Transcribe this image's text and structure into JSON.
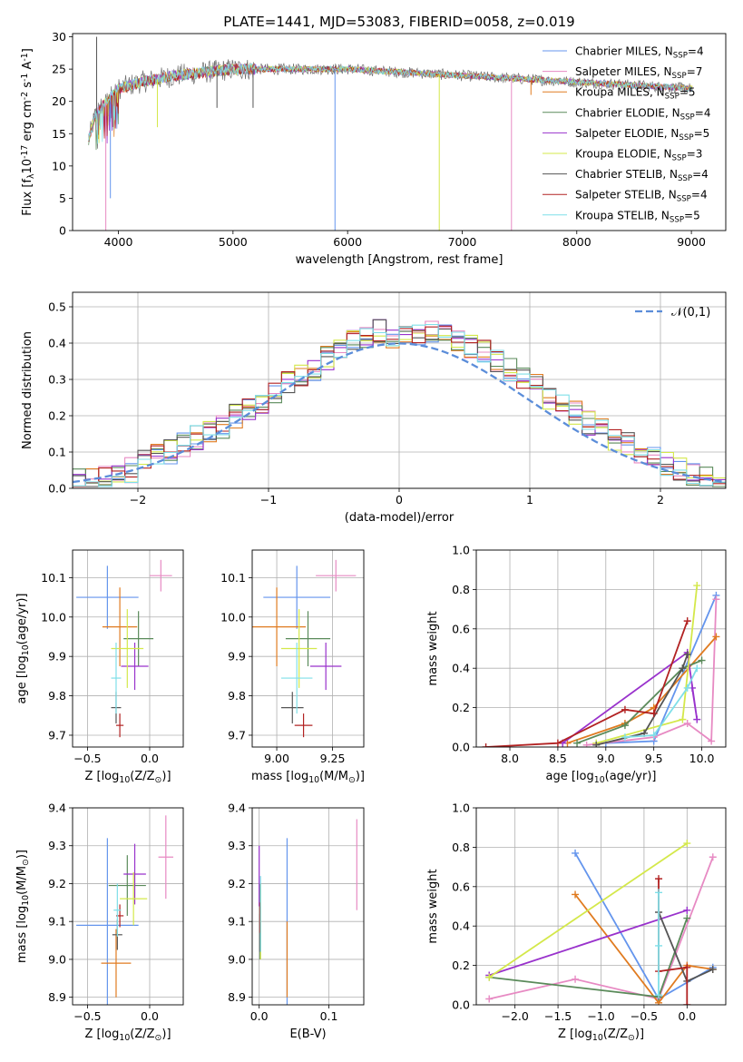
{
  "title": "PLATE=1441, MJD=53083, FIBERID=0058, z=0.019",
  "colors": [
    "#6495ED",
    "#E78AC3",
    "#E07B20",
    "#5A8A5A",
    "#9932CC",
    "#D4E84A",
    "#555555",
    "#B22222",
    "#7FDFE8"
  ],
  "legend_labels": [
    "Chabrier MILES, N$_{SSP}$=4",
    "Salpeter MILES, N$_{SSP}$=7",
    "Kroupa MILES, N$_{SSP}$=5",
    "Chabrier ELODIE, N$_{SSP}$=4",
    "Salpeter ELODIE, N$_{SSP}$=5",
    "Kroupa ELODIE, N$_{SSP}$=3",
    "Chabrier STELIB, N$_{SSP}$=4",
    "Salpeter STELIB, N$_{SSP}$=4",
    "Kroupa STELIB, N$_{SSP}$=5"
  ],
  "chart_data": [
    {
      "id": "spectrum",
      "type": "line",
      "xlabel": "wavelength [Angstrom, rest frame]",
      "ylabel": "Flux [f$_\\lambda$10$^{-17}$ erg cm$^{-2}$ s$^{-1}$ A$^{-1}$]",
      "xlim": [
        3600,
        9300
      ],
      "ylim": [
        0,
        30.5
      ],
      "xticks": [
        "4000",
        "5000",
        "6000",
        "7000",
        "8000",
        "9000"
      ],
      "yticks": [
        "0",
        "5",
        "10",
        "15",
        "20",
        "25",
        "30"
      ],
      "series_ref": "legend_labels",
      "approx_profile": [
        [
          3740,
          14
        ],
        [
          3800,
          18
        ],
        [
          3900,
          20
        ],
        [
          4000,
          22
        ],
        [
          4200,
          23
        ],
        [
          4500,
          24
        ],
        [
          5000,
          25
        ],
        [
          5500,
          25
        ],
        [
          6000,
          25
        ],
        [
          6500,
          24.5
        ],
        [
          7000,
          24
        ],
        [
          7500,
          23.5
        ],
        [
          8000,
          23
        ],
        [
          8500,
          22.5
        ],
        [
          9000,
          22
        ]
      ],
      "features": [
        {
          "x": 3810,
          "y": 30
        },
        {
          "x": 3890,
          "y": 0
        },
        {
          "x": 3930,
          "y": 5
        },
        {
          "x": 4340,
          "y": 16
        },
        {
          "x": 4860,
          "y": 19
        },
        {
          "x": 5175,
          "y": 19
        },
        {
          "x": 5890,
          "y": 0
        },
        {
          "x": 6800,
          "y": 0
        },
        {
          "x": 7430,
          "y": 0
        },
        {
          "x": 7600,
          "y": 21
        }
      ]
    },
    {
      "id": "residuals",
      "type": "line",
      "xlabel": "(data-model)/error",
      "ylabel": "Normed distribution",
      "xlim": [
        -2.5,
        2.5
      ],
      "ylim": [
        0,
        0.54
      ],
      "xticks": [
        "−2",
        "−1",
        "0",
        "1",
        "2"
      ],
      "yticks": [
        "0.0",
        "0.1",
        "0.2",
        "0.3",
        "0.4",
        "0.5"
      ],
      "legend": "$\\mathcal{N}(0,1)$",
      "bin_centers": [
        -2.45,
        -2.35,
        -2.25,
        -2.15,
        -2.05,
        -1.95,
        -1.85,
        -1.75,
        -1.65,
        -1.55,
        -1.45,
        -1.35,
        -1.25,
        -1.15,
        -1.05,
        -0.95,
        -0.85,
        -0.75,
        -0.65,
        -0.55,
        -0.45,
        -0.35,
        -0.25,
        -0.15,
        -0.05,
        0.05,
        0.15,
        0.25,
        0.35,
        0.45,
        0.55,
        0.65,
        0.75,
        0.85,
        0.95,
        1.05,
        1.15,
        1.25,
        1.35,
        1.45,
        1.55,
        1.65,
        1.75,
        1.85,
        1.95,
        2.05,
        2.15,
        2.25,
        2.35,
        2.45
      ],
      "histogram": [
        0.02,
        0.02,
        0.03,
        0.04,
        0.05,
        0.07,
        0.09,
        0.1,
        0.12,
        0.14,
        0.15,
        0.17,
        0.2,
        0.22,
        0.24,
        0.26,
        0.29,
        0.31,
        0.33,
        0.36,
        0.38,
        0.4,
        0.42,
        0.43,
        0.42,
        0.43,
        0.42,
        0.43,
        0.42,
        0.4,
        0.39,
        0.38,
        0.35,
        0.33,
        0.31,
        0.28,
        0.25,
        0.24,
        0.21,
        0.18,
        0.16,
        0.14,
        0.12,
        0.1,
        0.09,
        0.07,
        0.05,
        0.04,
        0.03,
        0.02
      ],
      "gaussian": {
        "mean": 0,
        "sigma": 1
      }
    },
    {
      "id": "age_vs_Z",
      "type": "scatter",
      "xlabel": "Z [log$_{10}$($Z/Z_\\odot$)]",
      "ylabel": "age  [log$_{10}$($age/yr$)]",
      "xlim": [
        -0.62,
        0.27
      ],
      "ylim": [
        9.67,
        10.17
      ],
      "xticks": [
        "−0.5",
        "0.0"
      ],
      "yticks": [
        "9.7",
        "9.8",
        "9.9",
        "10.0",
        "10.1"
      ],
      "points": [
        {
          "x": -0.34,
          "y": 10.05,
          "xerr": 0.25,
          "yerr": 0.08
        },
        {
          "x": 0.09,
          "y": 10.105,
          "xerr": 0.09,
          "yerr": 0.04
        },
        {
          "x": -0.24,
          "y": 9.975,
          "xerr": 0.14,
          "yerr": 0.1
        },
        {
          "x": -0.09,
          "y": 9.945,
          "xerr": 0.12,
          "yerr": 0.07
        },
        {
          "x": -0.12,
          "y": 9.875,
          "xerr": 0.11,
          "yerr": 0.06
        },
        {
          "x": -0.18,
          "y": 9.92,
          "xerr": 0.13,
          "yerr": 0.1
        },
        {
          "x": -0.27,
          "y": 9.77,
          "xerr": 0.04,
          "yerr": 0.04
        },
        {
          "x": -0.24,
          "y": 9.725,
          "xerr": 0.03,
          "yerr": 0.03
        },
        {
          "x": -0.27,
          "y": 9.845,
          "xerr": 0.04,
          "yerr": 0.09
        }
      ]
    },
    {
      "id": "age_vs_mass",
      "type": "scatter",
      "xlabel": "mass [log$_{10}$($M/M_\\odot$)]",
      "ylabel": "",
      "xlim": [
        8.89,
        9.39
      ],
      "ylim": [
        9.67,
        10.17
      ],
      "xticks": [
        "9.00",
        "9.25"
      ],
      "yticks": [
        "9.7",
        "9.8",
        "9.9",
        "10.0",
        "10.1"
      ],
      "points": [
        {
          "x": 9.09,
          "y": 10.05,
          "xerr": 0.15,
          "yerr": 0.08
        },
        {
          "x": 9.265,
          "y": 10.105,
          "xerr": 0.09,
          "yerr": 0.04
        },
        {
          "x": 9.0,
          "y": 9.975,
          "xerr": 0.13,
          "yerr": 0.1
        },
        {
          "x": 9.14,
          "y": 9.945,
          "xerr": 0.1,
          "yerr": 0.07
        },
        {
          "x": 9.22,
          "y": 9.875,
          "xerr": 0.07,
          "yerr": 0.06
        },
        {
          "x": 9.1,
          "y": 9.92,
          "xerr": 0.08,
          "yerr": 0.1
        },
        {
          "x": 9.07,
          "y": 9.77,
          "xerr": 0.05,
          "yerr": 0.04
        },
        {
          "x": 9.12,
          "y": 9.725,
          "xerr": 0.04,
          "yerr": 0.03
        },
        {
          "x": 9.09,
          "y": 9.845,
          "xerr": 0.07,
          "yerr": 0.09
        }
      ]
    },
    {
      "id": "weight_vs_age",
      "type": "line",
      "xlabel": "age  [log$_{10}$($age/yr$)]",
      "ylabel": "mass weight",
      "xlim": [
        7.65,
        10.25
      ],
      "ylim": [
        0,
        1.0
      ],
      "xticks": [
        "8.0",
        "8.5",
        "9.0",
        "9.5",
        "10.0"
      ],
      "yticks": [
        "0.0",
        "0.2",
        "0.4",
        "0.6",
        "0.8",
        "1.0"
      ],
      "series": [
        {
          "values": [
            [
              9.0,
              0.02
            ],
            [
              9.5,
              0.03
            ],
            [
              10.15,
              0.77
            ]
          ]
        },
        {
          "values": [
            [
              8.8,
              0.01
            ],
            [
              9.5,
              0.05
            ],
            [
              9.85,
              0.12
            ],
            [
              10.1,
              0.03
            ],
            [
              10.15,
              0.75
            ]
          ]
        },
        {
          "values": [
            [
              8.6,
              0.02
            ],
            [
              9.2,
              0.12
            ],
            [
              9.5,
              0.2
            ],
            [
              10.15,
              0.56
            ]
          ]
        },
        {
          "values": [
            [
              8.7,
              0.02
            ],
            [
              9.2,
              0.11
            ],
            [
              9.8,
              0.4
            ],
            [
              10.0,
              0.44
            ]
          ]
        },
        {
          "values": [
            [
              8.55,
              0.02
            ],
            [
              9.85,
              0.48
            ],
            [
              9.95,
              0.14
            ],
            [
              9.9,
              0.3
            ]
          ]
        },
        {
          "values": [
            [
              8.9,
              0.02
            ],
            [
              9.8,
              0.14
            ],
            [
              9.95,
              0.82
            ]
          ]
        },
        {
          "values": [
            [
              8.9,
              0.01
            ],
            [
              9.4,
              0.07
            ],
            [
              9.8,
              0.4
            ],
            [
              9.85,
              0.47
            ]
          ]
        },
        {
          "values": [
            [
              7.75,
              0.0
            ],
            [
              8.5,
              0.02
            ],
            [
              9.2,
              0.19
            ],
            [
              9.5,
              0.17
            ],
            [
              9.85,
              0.64
            ]
          ]
        },
        {
          "values": [
            [
              9.2,
              0.05
            ],
            [
              9.5,
              0.06
            ],
            [
              9.85,
              0.3
            ],
            [
              9.95,
              0.4
            ]
          ]
        }
      ]
    },
    {
      "id": "mass_vs_Z",
      "type": "scatter",
      "xlabel": "Z [log$_{10}$($Z/Z_\\odot$)]",
      "ylabel": "mass [log$_{10}$($M/M_\\odot$)]",
      "xlim": [
        -0.62,
        0.27
      ],
      "ylim": [
        8.88,
        9.4
      ],
      "xticks": [
        "−0.5",
        "0.0"
      ],
      "yticks": [
        "8.9",
        "9.0",
        "9.1",
        "9.2",
        "9.3",
        "9.4"
      ],
      "points": [
        {
          "x": -0.34,
          "y": 9.09,
          "xerr": 0.25,
          "yerr": 0.23
        },
        {
          "x": 0.13,
          "y": 9.27,
          "xerr": 0.06,
          "yerr": 0.11
        },
        {
          "x": -0.27,
          "y": 8.99,
          "xerr": 0.12,
          "yerr": 0.09
        },
        {
          "x": -0.18,
          "y": 9.195,
          "xerr": 0.15,
          "yerr": 0.08
        },
        {
          "x": -0.12,
          "y": 9.225,
          "xerr": 0.09,
          "yerr": 0.08
        },
        {
          "x": -0.13,
          "y": 9.16,
          "xerr": 0.11,
          "yerr": 0.07
        },
        {
          "x": -0.26,
          "y": 9.065,
          "xerr": 0.04,
          "yerr": 0.04
        },
        {
          "x": -0.24,
          "y": 9.115,
          "xerr": 0.03,
          "yerr": 0.03
        },
        {
          "x": -0.26,
          "y": 9.13,
          "xerr": 0.03,
          "yerr": 0.07
        }
      ]
    },
    {
      "id": "mass_vs_ebv",
      "type": "scatter",
      "xlabel": "E(B-V)",
      "ylabel": "",
      "xlim": [
        -0.01,
        0.15
      ],
      "ylim": [
        8.88,
        9.4
      ],
      "xticks": [
        "0.0",
        "0.1"
      ],
      "yticks": [
        "8.9",
        "9.0",
        "9.1",
        "9.2",
        "9.3",
        "9.4"
      ],
      "points": [
        {
          "x": 0.04,
          "y": 9.09,
          "xerr": 0,
          "yerr": 0.23
        },
        {
          "x": 0.14,
          "y": 9.25,
          "xerr": 0,
          "yerr": 0.12
        },
        {
          "x": 0.04,
          "y": 9.0,
          "xerr": 0,
          "yerr": 0.1
        },
        {
          "x": 0.001,
          "y": 9.1,
          "xerr": 0,
          "yerr": 0.1
        },
        {
          "x": 0.0,
          "y": 9.22,
          "xerr": 0,
          "yerr": 0.08
        },
        {
          "x": 0.002,
          "y": 9.1,
          "xerr": 0,
          "yerr": 0.1
        },
        {
          "x": 0.001,
          "y": 9.07,
          "xerr": 0,
          "yerr": 0.05
        },
        {
          "x": 0.001,
          "y": 9.11,
          "xerr": 0,
          "yerr": 0.04
        },
        {
          "x": 0.002,
          "y": 9.12,
          "xerr": 0,
          "yerr": 0.1
        }
      ]
    },
    {
      "id": "weight_vs_Z",
      "type": "line",
      "xlabel": "Z [log$_{10}$($Z/Z_\\odot$)]",
      "ylabel": "mass weight",
      "xlim": [
        -2.45,
        0.45
      ],
      "ylim": [
        0,
        1.0
      ],
      "xticks": [
        "−2.0",
        "−1.5",
        "−1.0",
        "−0.5",
        "0.0"
      ],
      "yticks": [
        "0.0",
        "0.2",
        "0.4",
        "0.6",
        "0.8",
        "1.0"
      ],
      "series": [
        {
          "values": [
            [
              -1.3,
              0.77
            ],
            [
              -0.33,
              0.03
            ],
            [
              0.3,
              0.19
            ]
          ]
        },
        {
          "values": [
            [
              -2.3,
              0.03
            ],
            [
              -1.3,
              0.13
            ],
            [
              -0.33,
              0.03
            ],
            [
              0.3,
              0.75
            ]
          ]
        },
        {
          "values": [
            [
              -1.3,
              0.56
            ],
            [
              -0.33,
              0.01
            ],
            [
              0.0,
              0.2
            ],
            [
              0.3,
              0.18
            ]
          ]
        },
        {
          "values": [
            [
              -2.3,
              0.14
            ],
            [
              -0.33,
              0.04
            ],
            [
              0.0,
              0.44
            ]
          ]
        },
        {
          "values": [
            [
              -2.3,
              0.15
            ],
            [
              0.0,
              0.48
            ]
          ]
        },
        {
          "values": [
            [
              -2.3,
              0.14
            ],
            [
              0.0,
              0.82
            ]
          ]
        },
        {
          "values": [
            [
              -0.33,
              0.47
            ],
            [
              0.0,
              0.12
            ],
            [
              0.3,
              0.18
            ]
          ]
        },
        {
          "values": [
            [
              -0.33,
              0.64
            ],
            [
              -0.33,
              0.17
            ],
            [
              0.0,
              0.19
            ],
            [
              0.0,
              0.0
            ]
          ]
        },
        {
          "values": [
            [
              -0.33,
              0.57
            ],
            [
              -0.33,
              0.3
            ],
            [
              -0.33,
              0.05
            ]
          ]
        }
      ]
    }
  ]
}
